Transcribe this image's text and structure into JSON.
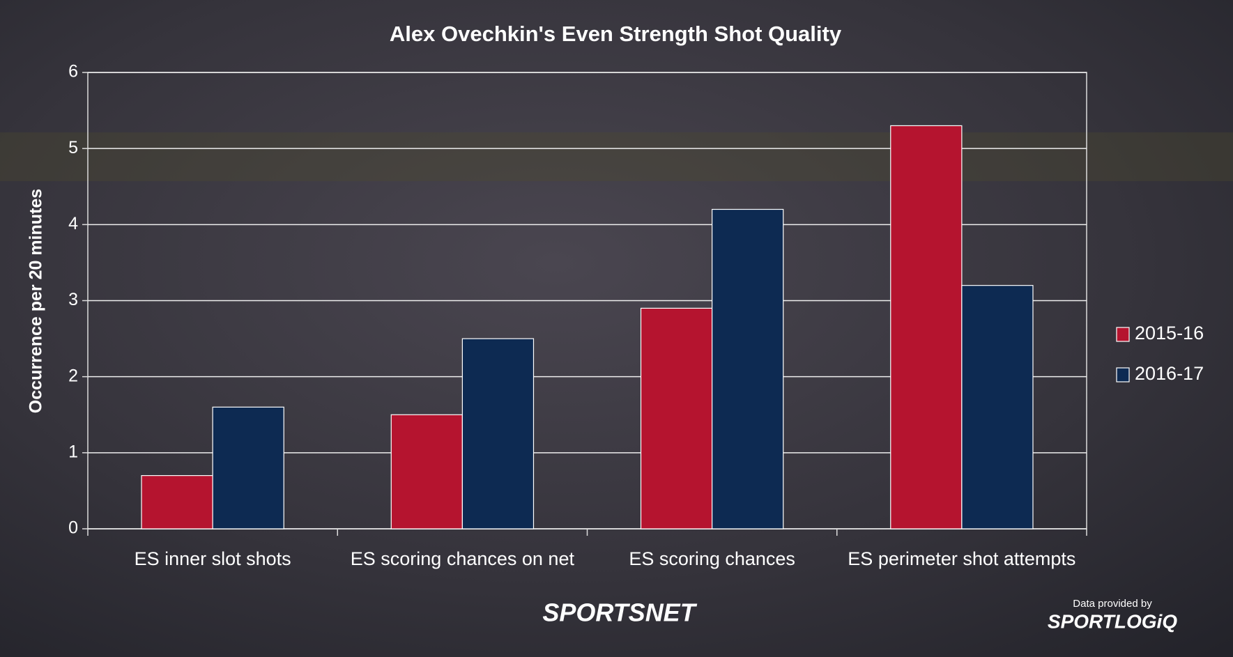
{
  "chart_data": {
    "type": "bar",
    "title": "Alex Ovechkin's Even Strength Shot Quality",
    "y_label": "Occurrence per 20 minutes",
    "categories": [
      "ES inner slot shots",
      "ES scoring chances on net",
      "ES scoring chances",
      "ES perimeter shot attempts"
    ],
    "series": [
      {
        "name": "2015-16",
        "color": "#b5142f",
        "values": [
          0.7,
          1.5,
          2.9,
          5.3
        ]
      },
      {
        "name": "2016-17",
        "color": "#0d2a52",
        "values": [
          1.6,
          2.5,
          4.2,
          3.2
        ]
      }
    ],
    "ylim": [
      0,
      6
    ],
    "yticks": [
      0,
      1,
      2,
      3,
      4,
      5,
      6
    ],
    "grid": true,
    "legend": "right"
  },
  "footer": {
    "brand": "SPORTSNET",
    "credit": "Data provided by",
    "provider": "SPORTLOGiQ"
  }
}
